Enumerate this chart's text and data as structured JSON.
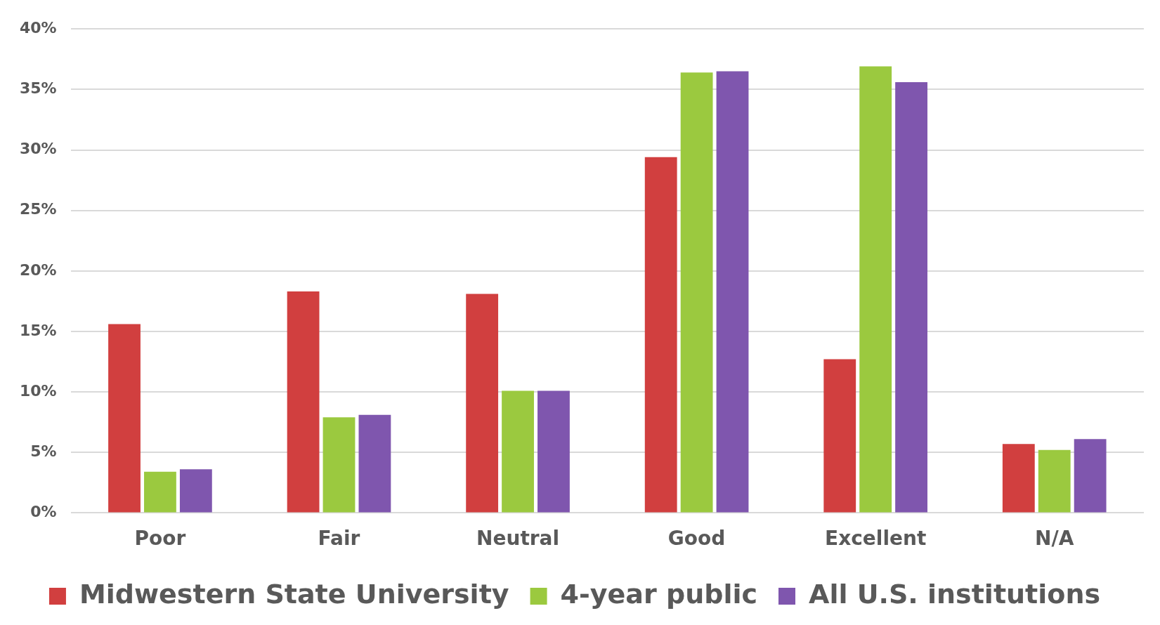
{
  "chart_data": {
    "type": "bar",
    "categories": [
      "Poor",
      "Fair",
      "Neutral",
      "Good",
      "Excellent",
      "N/A"
    ],
    "series": [
      {
        "name": "Midwestern State University",
        "color": "#d13f3f",
        "values": [
          15.6,
          18.3,
          18.1,
          29.4,
          12.7,
          5.7
        ]
      },
      {
        "name": "4-year public",
        "color": "#9bc93f",
        "values": [
          3.4,
          7.9,
          10.1,
          36.4,
          36.9,
          5.2
        ]
      },
      {
        "name": "All U.S. institutions",
        "color": "#7f56ae",
        "values": [
          3.6,
          8.1,
          10.1,
          36.5,
          35.6,
          6.1
        ]
      }
    ],
    "ylim": [
      0,
      40
    ],
    "yticks": [
      {
        "value": 0,
        "label": "0%"
      },
      {
        "value": 5,
        "label": "5%"
      },
      {
        "value": 10,
        "label": "10%"
      },
      {
        "value": 15,
        "label": "15%"
      },
      {
        "value": 20,
        "label": "20%"
      },
      {
        "value": 25,
        "label": "25%"
      },
      {
        "value": 30,
        "label": "30%"
      },
      {
        "value": 35,
        "label": "35%"
      },
      {
        "value": 40,
        "label": "40%"
      }
    ],
    "grid": "y",
    "legend": "bottom"
  }
}
